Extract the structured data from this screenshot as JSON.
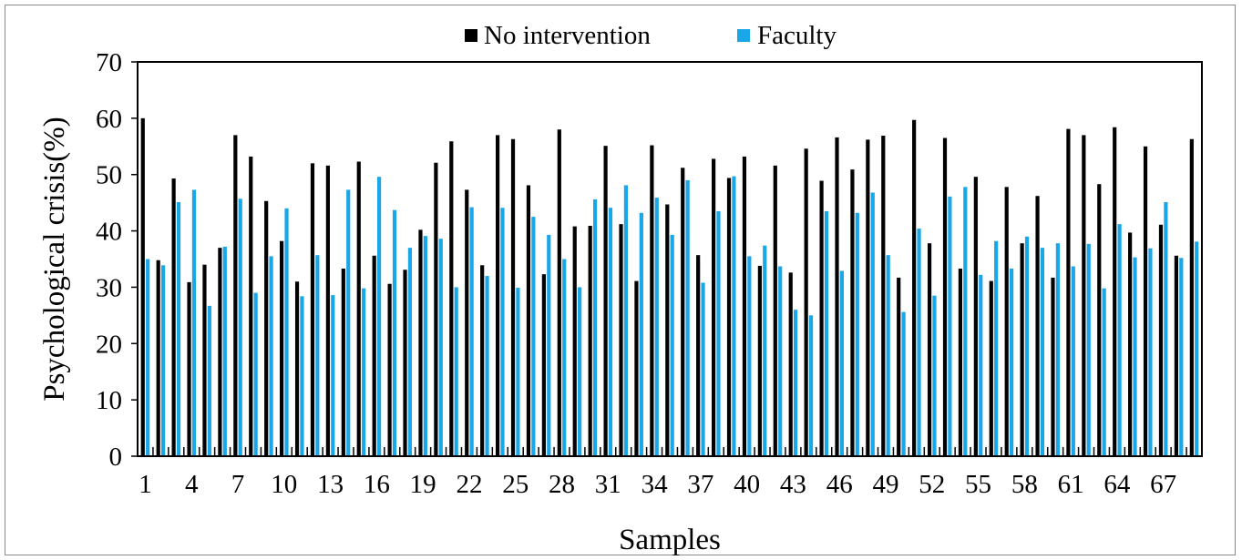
{
  "chart_data": {
    "type": "bar",
    "title": "",
    "xlabel": "Samples",
    "ylabel": "Psychological crisis(%)",
    "ylim": [
      0,
      70
    ],
    "yticks": [
      0,
      10,
      20,
      30,
      40,
      50,
      60,
      70
    ],
    "xtick_labels": [
      "1",
      "4",
      "7",
      "10",
      "13",
      "16",
      "19",
      "22",
      "25",
      "28",
      "31",
      "34",
      "37",
      "40",
      "43",
      "46",
      "49",
      "52",
      "55",
      "58",
      "61",
      "64",
      "67"
    ],
    "legend_position": "top-center",
    "grid": false,
    "categories": [
      1,
      2,
      3,
      4,
      5,
      6,
      7,
      8,
      9,
      10,
      11,
      12,
      13,
      14,
      15,
      16,
      17,
      18,
      19,
      20,
      21,
      22,
      23,
      24,
      25,
      26,
      27,
      28,
      29,
      30,
      31,
      32,
      33,
      34,
      35,
      36,
      37,
      38,
      39,
      40,
      41,
      42,
      43,
      44,
      45,
      46,
      47,
      48,
      49,
      50,
      51,
      52,
      53,
      54,
      55,
      56,
      57,
      58,
      59,
      60,
      61,
      62,
      63,
      64,
      65,
      66,
      67,
      68,
      69
    ],
    "series": [
      {
        "name": "No intervention",
        "color": "#000000",
        "values": [
          60.0,
          34.8,
          49.3,
          30.9,
          34.0,
          37.0,
          57.0,
          53.2,
          45.3,
          38.2,
          31.0,
          52.0,
          51.6,
          33.3,
          52.3,
          35.6,
          30.6,
          33.1,
          40.2,
          52.1,
          55.9,
          47.3,
          33.9,
          57.0,
          56.3,
          48.1,
          32.3,
          58.0,
          40.8,
          40.9,
          55.1,
          41.2,
          31.1,
          55.2,
          44.7,
          51.2,
          35.7,
          52.8,
          49.4,
          53.2,
          33.8,
          51.6,
          32.6,
          54.6,
          48.9,
          56.6,
          50.9,
          56.2,
          56.9,
          31.7,
          59.7,
          37.8,
          56.5,
          33.3,
          49.6,
          31.1,
          47.8,
          37.8,
          46.2,
          31.7,
          58.1,
          57.0,
          48.3,
          58.4,
          39.7,
          55.0,
          41.1,
          35.6,
          56.3
        ]
      },
      {
        "name": "Faculty",
        "color": "#1aa7e8",
        "values": [
          35.0,
          33.9,
          45.1,
          47.3,
          26.7,
          37.2,
          45.7,
          29.0,
          35.5,
          44.0,
          28.4,
          35.7,
          28.6,
          47.3,
          29.8,
          49.6,
          43.7,
          37.0,
          39.1,
          38.6,
          30.0,
          44.2,
          32.0,
          44.1,
          29.9,
          42.5,
          39.3,
          35.0,
          30.0,
          45.6,
          44.1,
          48.1,
          43.2,
          45.9,
          39.3,
          49.0,
          30.8,
          43.5,
          49.7,
          35.5,
          37.4,
          33.7,
          26.0,
          25.0,
          43.5,
          32.9,
          43.2,
          46.8,
          35.7,
          25.6,
          40.4,
          28.5,
          46.1,
          47.8,
          32.2,
          38.2,
          33.3,
          39.0,
          37.0,
          37.8,
          33.7,
          37.7,
          29.8,
          41.2,
          35.3,
          36.9,
          45.1,
          35.2,
          38.1
        ]
      }
    ]
  }
}
